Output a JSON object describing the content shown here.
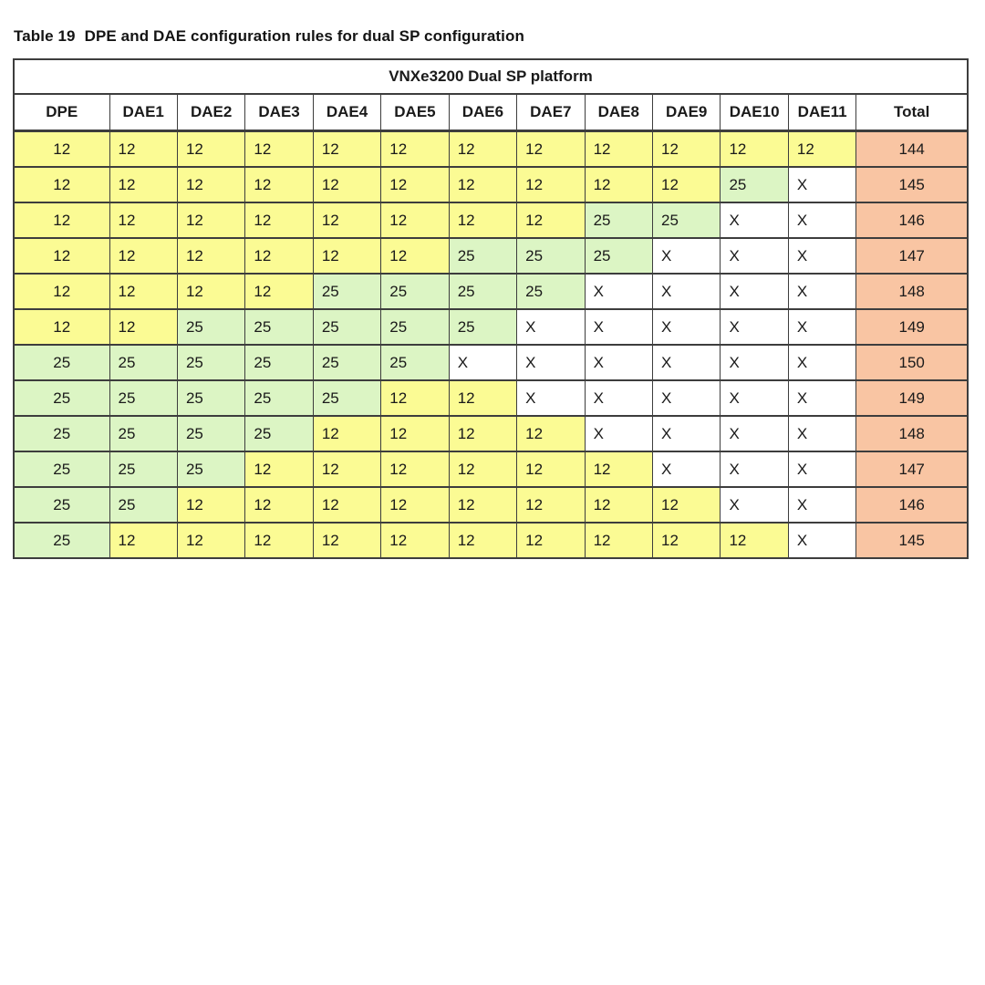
{
  "caption": {
    "label": "Table 19",
    "text": "DPE and DAE configuration rules for dual SP configuration"
  },
  "table": {
    "platform_header": "VNXe3200 Dual SP platform",
    "columns": [
      "DPE",
      "DAE1",
      "DAE2",
      "DAE3",
      "DAE4",
      "DAE5",
      "DAE6",
      "DAE7",
      "DAE8",
      "DAE9",
      "DAE10",
      "DAE11",
      "Total"
    ],
    "rows": [
      {
        "values": [
          "12",
          "12",
          "12",
          "12",
          "12",
          "12",
          "12",
          "12",
          "12",
          "12",
          "12",
          "12"
        ],
        "total": "144"
      },
      {
        "values": [
          "12",
          "12",
          "12",
          "12",
          "12",
          "12",
          "12",
          "12",
          "12",
          "12",
          "25",
          "X"
        ],
        "total": "145"
      },
      {
        "values": [
          "12",
          "12",
          "12",
          "12",
          "12",
          "12",
          "12",
          "12",
          "25",
          "25",
          "X",
          "X"
        ],
        "total": "146"
      },
      {
        "values": [
          "12",
          "12",
          "12",
          "12",
          "12",
          "12",
          "25",
          "25",
          "25",
          "X",
          "X",
          "X"
        ],
        "total": "147"
      },
      {
        "values": [
          "12",
          "12",
          "12",
          "12",
          "25",
          "25",
          "25",
          "25",
          "X",
          "X",
          "X",
          "X"
        ],
        "total": "148"
      },
      {
        "values": [
          "12",
          "12",
          "25",
          "25",
          "25",
          "25",
          "25",
          "X",
          "X",
          "X",
          "X",
          "X"
        ],
        "total": "149"
      },
      {
        "values": [
          "25",
          "25",
          "25",
          "25",
          "25",
          "25",
          "X",
          "X",
          "X",
          "X",
          "X",
          "X"
        ],
        "total": "150"
      },
      {
        "values": [
          "25",
          "25",
          "25",
          "25",
          "25",
          "12",
          "12",
          "X",
          "X",
          "X",
          "X",
          "X"
        ],
        "total": "149"
      },
      {
        "values": [
          "25",
          "25",
          "25",
          "25",
          "12",
          "12",
          "12",
          "12",
          "X",
          "X",
          "X",
          "X"
        ],
        "total": "148"
      },
      {
        "values": [
          "25",
          "25",
          "25",
          "12",
          "12",
          "12",
          "12",
          "12",
          "12",
          "X",
          "X",
          "X"
        ],
        "total": "147"
      },
      {
        "values": [
          "25",
          "25",
          "12",
          "12",
          "12",
          "12",
          "12",
          "12",
          "12",
          "12",
          "X",
          "X"
        ],
        "total": "146"
      },
      {
        "values": [
          "25",
          "12",
          "12",
          "12",
          "12",
          "12",
          "12",
          "12",
          "12",
          "12",
          "12",
          "X"
        ],
        "total": "145"
      }
    ],
    "cell_colors": {
      "12": "#fbfb94",
      "25": "#dcf5c4",
      "X": "#ffffff",
      "total": "#f9c5a3"
    }
  }
}
